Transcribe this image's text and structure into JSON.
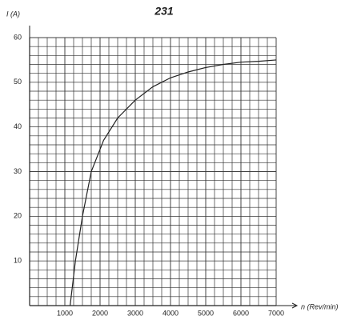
{
  "chart_data": {
    "type": "line",
    "title": "231",
    "y_label": "I (A)",
    "x_label": "n (Rev/min)",
    "x": [
      1150,
      1300,
      1500,
      1750,
      2100,
      2500,
      3000,
      3500,
      4000,
      4500,
      5000,
      5500,
      6000,
      6500,
      7000
    ],
    "series": [
      {
        "name": "I",
        "color": "#222222",
        "values": [
          0,
          10,
          20,
          30,
          37,
          42,
          46,
          49,
          51,
          52.3,
          53.3,
          54,
          54.5,
          54.7,
          55
        ]
      }
    ],
    "xlim": [
      0,
      7000
    ],
    "ylim": [
      0,
      60
    ],
    "xticks": [
      1000,
      2000,
      3000,
      4000,
      5000,
      6000,
      7000
    ],
    "yticks": [
      10,
      20,
      30,
      40,
      50,
      60
    ],
    "grid": true
  }
}
